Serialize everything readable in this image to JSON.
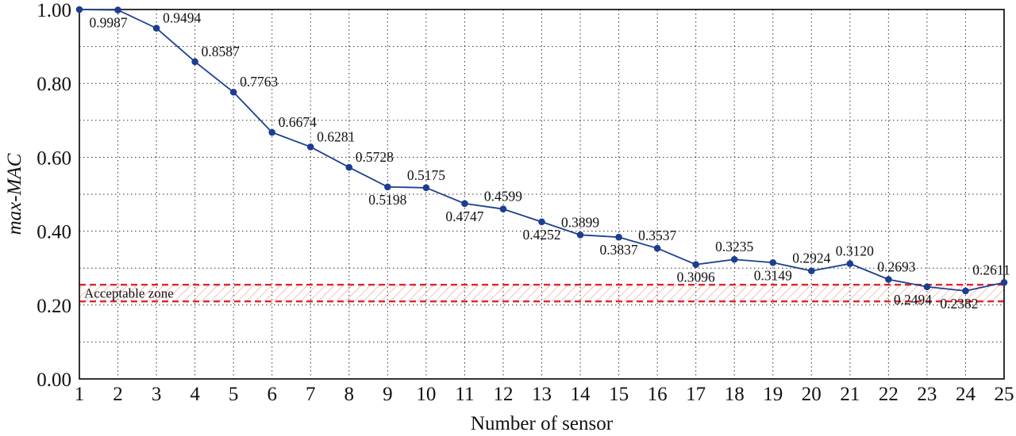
{
  "chart_data": {
    "type": "line",
    "title": "",
    "xlabel": "Number of sensor",
    "ylabel": "max-MAC",
    "x": [
      1,
      2,
      3,
      4,
      5,
      6,
      7,
      8,
      9,
      10,
      11,
      12,
      13,
      14,
      15,
      16,
      17,
      18,
      19,
      20,
      21,
      22,
      23,
      24,
      25
    ],
    "values": [
      1.0,
      0.9987,
      0.9494,
      0.8587,
      0.7763,
      0.6674,
      0.6281,
      0.5728,
      0.5198,
      0.5175,
      0.4747,
      0.4599,
      0.4252,
      0.3899,
      0.3837,
      0.3537,
      0.3096,
      0.3235,
      0.3149,
      0.2924,
      0.312,
      0.2693,
      0.2494,
      0.2382,
      0.2611
    ],
    "point_labels": [
      {
        "x": 2,
        "text": "0.9987",
        "place": "below",
        "dx": -12
      },
      {
        "x": 3,
        "text": "0.9494",
        "place": "above-right"
      },
      {
        "x": 4,
        "text": "0.8587",
        "place": "above-right"
      },
      {
        "x": 5,
        "text": "0.7763",
        "place": "above-right"
      },
      {
        "x": 6,
        "text": "0.6674",
        "place": "above-right"
      },
      {
        "x": 7,
        "text": "0.6281",
        "place": "above-right"
      },
      {
        "x": 8,
        "text": "0.5728",
        "place": "above-right"
      },
      {
        "x": 9,
        "text": "0.5198",
        "place": "below"
      },
      {
        "x": 10,
        "text": "0.5175",
        "place": "above"
      },
      {
        "x": 11,
        "text": "0.4747",
        "place": "below"
      },
      {
        "x": 12,
        "text": "0.4599",
        "place": "above"
      },
      {
        "x": 13,
        "text": "0.4252",
        "place": "below"
      },
      {
        "x": 14,
        "text": "0.3899",
        "place": "above"
      },
      {
        "x": 15,
        "text": "0.3837",
        "place": "below"
      },
      {
        "x": 16,
        "text": "0.3537",
        "place": "above"
      },
      {
        "x": 17,
        "text": "0.3096",
        "place": "below"
      },
      {
        "x": 18,
        "text": "0.3235",
        "place": "above"
      },
      {
        "x": 19,
        "text": "0.3149",
        "place": "below"
      },
      {
        "x": 20,
        "text": "0.2924",
        "place": "above"
      },
      {
        "x": 21,
        "text": "0.3120",
        "place": "above",
        "dx": 6
      },
      {
        "x": 22,
        "text": "0.2693",
        "place": "above",
        "dx": 10
      },
      {
        "x": 23,
        "text": "0.2494",
        "place": "below",
        "dx": -18
      },
      {
        "x": 24,
        "text": "0.2382",
        "place": "below",
        "dx": -8
      },
      {
        "x": 25,
        "text": "0.2611",
        "place": "above",
        "dx": -16
      }
    ],
    "xticks": [
      "1",
      "2",
      "3",
      "4",
      "5",
      "6",
      "7",
      "8",
      "9",
      "10",
      "11",
      "12",
      "13",
      "14",
      "15",
      "16",
      "17",
      "18",
      "19",
      "20",
      "21",
      "22",
      "23",
      "24",
      "25"
    ],
    "yticks": [
      {
        "value": 0.0,
        "label": "0.00"
      },
      {
        "value": 0.2,
        "label": "0.20"
      },
      {
        "value": 0.4,
        "label": "0.40"
      },
      {
        "value": 0.6,
        "label": "0.60"
      },
      {
        "value": 0.8,
        "label": "0.80"
      },
      {
        "value": 1.0,
        "label": "1.00"
      }
    ],
    "ylim": [
      0.0,
      1.0
    ],
    "grid": "dotted",
    "grid_step_y": 0.1,
    "legend": "none",
    "line_color": "#1c3e91",
    "grid_color": "#333333",
    "axis_color": "#000000",
    "acceptable_zone": {
      "label": "Acceptable zone",
      "ymin": 0.21,
      "ymax": 0.255,
      "color": "#e0262a"
    }
  }
}
